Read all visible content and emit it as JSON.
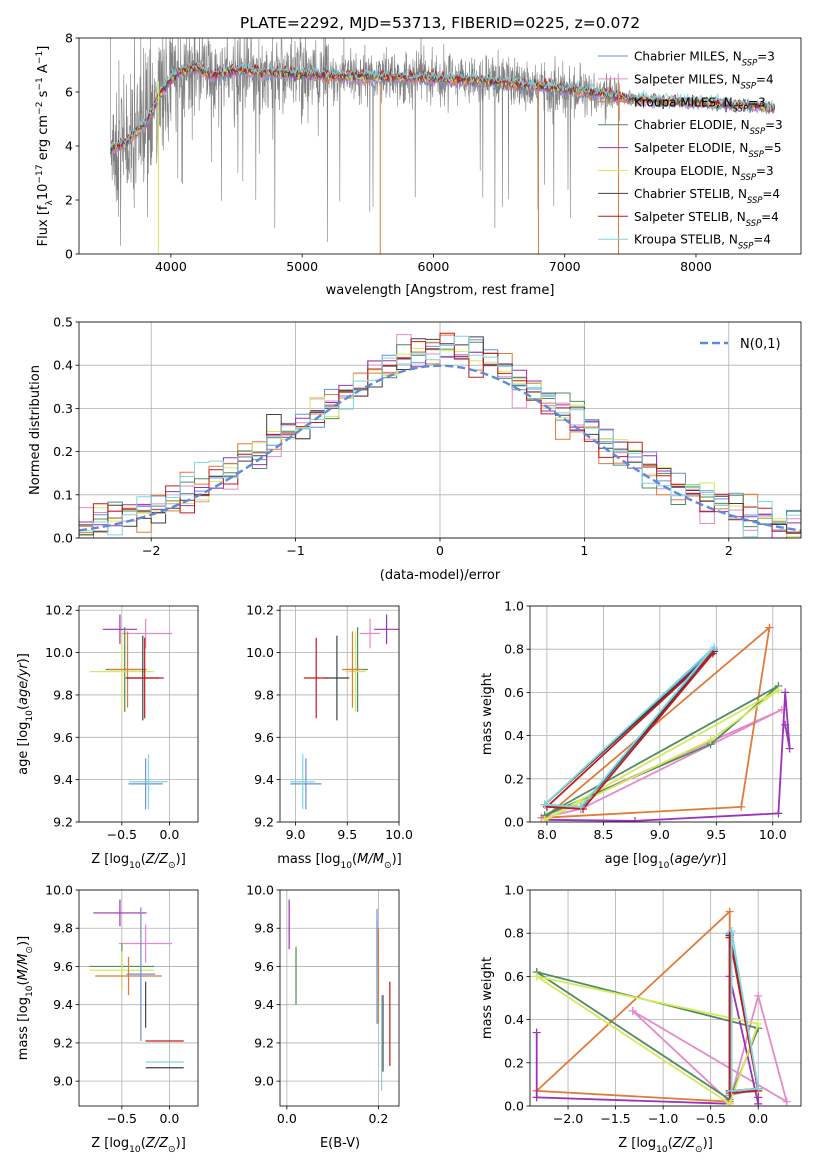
{
  "colors": {
    "chabrier_miles": "#6a8fd8",
    "salpeter_miles": "#e58ac9",
    "kroupa_miles": "#e07b39",
    "chabrier_elodie": "#4f8c62",
    "salpeter_elodie": "#9b32b8",
    "kroupa_elodie": "#d6ea5a",
    "chabrier_stelib": "#404040",
    "salpeter_stelib": "#c41a1a",
    "kroupa_stelib": "#7fd6e0",
    "spectrum": "#808080",
    "normal": "#5b8bd9"
  },
  "chart_data": [
    {
      "id": "spectrum",
      "type": "line",
      "title": "PLATE=2292, MJD=53713, FIBERID=0225, z=0.072",
      "xlabel": "wavelength [Angstrom, rest frame]",
      "ylabel": "Flux [f_λ10^-17 erg cm^-2 s^-1 A^-1]",
      "xlim": [
        3300,
        8800
      ],
      "ylim": [
        0,
        8
      ],
      "xticks": [
        4000,
        5000,
        6000,
        7000,
        8000
      ],
      "yticks": [
        0,
        2,
        4,
        6,
        8
      ],
      "legend_position": "right",
      "legend": [
        {
          "label": "Chabrier MILES, N_SSP=3",
          "color": "#6a8fd8"
        },
        {
          "label": "Salpeter MILES, N_SSP=4",
          "color": "#e58ac9"
        },
        {
          "label": "Kroupa MILES, N_SSP=3",
          "color": "#e07b39"
        },
        {
          "label": "Chabrier ELODIE, N_SSP=3",
          "color": "#4f8c62"
        },
        {
          "label": "Salpeter ELODIE, N_SSP=5",
          "color": "#9b32b8"
        },
        {
          "label": "Kroupa ELODIE, N_SSP=3",
          "color": "#d6ea5a"
        },
        {
          "label": "Chabrier STELIB, N_SSP=4",
          "color": "#404040"
        },
        {
          "label": "Salpeter STELIB, N_SSP=4",
          "color": "#c41a1a"
        },
        {
          "label": "Kroupa STELIB, N_SSP=4",
          "color": "#7fd6e0"
        }
      ],
      "observed_range": [
        3540,
        7420
      ],
      "model_envelope": {
        "x": [
          3540,
          3650,
          3800,
          3950,
          4050,
          4200,
          4300,
          4500,
          4800,
          5200,
          5600,
          6000,
          6400,
          6800,
          7200,
          7500,
          7800,
          8100,
          8400,
          8600
        ],
        "y": [
          3.9,
          4.1,
          4.8,
          6.2,
          6.7,
          6.9,
          6.6,
          6.8,
          6.7,
          6.6,
          6.55,
          6.5,
          6.4,
          6.2,
          6.0,
          5.75,
          5.65,
          5.6,
          5.5,
          5.4
        ]
      }
    },
    {
      "id": "residuals",
      "type": "histogram",
      "xlabel": "(data-model)/error",
      "ylabel": "Normed distribution",
      "xlim": [
        -2.5,
        2.5
      ],
      "ylim": [
        0,
        0.5
      ],
      "xticks": [
        -2,
        -1,
        0,
        1,
        2
      ],
      "yticks": [
        0.0,
        0.1,
        0.2,
        0.3,
        0.4,
        0.5
      ],
      "legend_position": "top-right",
      "legend_label": "N(0,1)",
      "bin_width": 0.1,
      "reference_curve": "normal(0,1)"
    },
    {
      "id": "age_vs_z",
      "type": "errorbar",
      "xlabel": "Z [log10(Z/Z⊙)]",
      "ylabel": "age [log10(age/yr)]",
      "xlim": [
        -0.95,
        0.3
      ],
      "ylim": [
        9.2,
        10.22
      ],
      "xticks": [
        -0.5,
        0.0
      ],
      "yticks": [
        9.2,
        9.4,
        9.6,
        9.8,
        10.0,
        10.2
      ],
      "points": [
        {
          "series": "salpeter_elodie",
          "x": -0.52,
          "y": 10.11,
          "xerr": 0.18,
          "yerr": 0.07
        },
        {
          "series": "salpeter_miles",
          "x": -0.25,
          "y": 10.09,
          "xerr": 0.28,
          "yerr": 0.07
        },
        {
          "series": "chabrier_elodie",
          "x": -0.47,
          "y": 9.92,
          "xerr": 0.2,
          "yerr": 0.2
        },
        {
          "series": "kroupa_elodie",
          "x": -0.5,
          "y": 9.91,
          "xerr": 0.34,
          "yerr": 0.19
        },
        {
          "series": "kroupa_miles",
          "x": -0.44,
          "y": 9.92,
          "xerr": 0.2,
          "yerr": 0.18
        },
        {
          "series": "chabrier_stelib",
          "x": -0.28,
          "y": 9.88,
          "xerr": 0.17,
          "yerr": 0.2
        },
        {
          "series": "salpeter_stelib",
          "x": -0.26,
          "y": 9.88,
          "xerr": 0.2,
          "yerr": 0.19
        },
        {
          "series": "chabrier_miles",
          "x": -0.25,
          "y": 9.38,
          "xerr": 0.18,
          "yerr": 0.12
        },
        {
          "series": "kroupa_stelib",
          "x": -0.22,
          "y": 9.39,
          "xerr": 0.2,
          "yerr": 0.13
        }
      ]
    },
    {
      "id": "age_vs_mass",
      "type": "errorbar",
      "xlabel": "mass [log10(M/M⊙)]",
      "xlim": [
        8.85,
        10.0
      ],
      "ylim": [
        9.2,
        10.22
      ],
      "xticks": [
        9.0,
        9.5,
        10.0
      ],
      "yticks": [
        9.2,
        9.4,
        9.6,
        9.8,
        10.0,
        10.2
      ],
      "points": [
        {
          "series": "salpeter_elodie",
          "x": 9.88,
          "y": 10.11,
          "xerr": 0.12,
          "yerr": 0.07
        },
        {
          "series": "salpeter_miles",
          "x": 9.72,
          "y": 10.09,
          "xerr": 0.1,
          "yerr": 0.07
        },
        {
          "series": "chabrier_elodie",
          "x": 9.6,
          "y": 9.92,
          "xerr": 0.1,
          "yerr": 0.2
        },
        {
          "series": "kroupa_elodie",
          "x": 9.58,
          "y": 9.91,
          "xerr": 0.1,
          "yerr": 0.19
        },
        {
          "series": "kroupa_miles",
          "x": 9.55,
          "y": 9.92,
          "xerr": 0.1,
          "yerr": 0.18
        },
        {
          "series": "chabrier_stelib",
          "x": 9.4,
          "y": 9.88,
          "xerr": 0.12,
          "yerr": 0.2
        },
        {
          "series": "salpeter_stelib",
          "x": 9.2,
          "y": 9.88,
          "xerr": 0.12,
          "yerr": 0.19
        },
        {
          "series": "chabrier_miles",
          "x": 9.1,
          "y": 9.38,
          "xerr": 0.15,
          "yerr": 0.12
        },
        {
          "series": "kroupa_stelib",
          "x": 9.07,
          "y": 9.39,
          "xerr": 0.12,
          "yerr": 0.13
        }
      ]
    },
    {
      "id": "weight_vs_age",
      "type": "line",
      "xlabel": "age [log10(age/yr)]",
      "ylabel": "mass weight",
      "xlim": [
        7.85,
        10.25
      ],
      "ylim": [
        0,
        1.0
      ],
      "xticks": [
        8.0,
        8.5,
        9.0,
        9.5,
        10.0
      ],
      "yticks": [
        0.0,
        0.2,
        0.4,
        0.6,
        0.8,
        1.0
      ],
      "series": [
        {
          "name": "chabrier_miles",
          "x": [
            7.98,
            9.48,
            8.3,
            7.98
          ],
          "y": [
            0.08,
            0.8,
            0.06,
            0.08
          ]
        },
        {
          "name": "salpeter_miles",
          "x": [
            7.95,
            10.08,
            8.3,
            7.95
          ],
          "y": [
            0.02,
            0.52,
            0.06,
            0.02
          ]
        },
        {
          "name": "kroupa_miles",
          "x": [
            7.98,
            9.72,
            9.97,
            7.98
          ],
          "y": [
            0.02,
            0.07,
            0.9,
            0.02
          ]
        },
        {
          "name": "chabrier_elodie",
          "x": [
            7.98,
            10.05,
            9.45,
            7.98
          ],
          "y": [
            0.03,
            0.63,
            0.36,
            0.03
          ]
        },
        {
          "name": "salpeter_elodie",
          "x": [
            7.98,
            8.78,
            10.05,
            10.11,
            10.15,
            10.11
          ],
          "y": [
            0.01,
            0.005,
            0.04,
            0.6,
            0.34,
            0.45
          ]
        },
        {
          "name": "kroupa_elodie",
          "x": [
            7.98,
            10.05,
            9.45,
            7.98
          ],
          "y": [
            0.01,
            0.61,
            0.38,
            0.01
          ]
        },
        {
          "name": "chabrier_stelib",
          "x": [
            7.98,
            9.48,
            8.3,
            7.98
          ],
          "y": [
            0.08,
            0.79,
            0.07,
            0.08
          ]
        },
        {
          "name": "salpeter_stelib",
          "x": [
            8.0,
            9.47,
            8.32,
            8.0
          ],
          "y": [
            0.07,
            0.78,
            0.06,
            0.07
          ]
        },
        {
          "name": "kroupa_stelib",
          "x": [
            7.98,
            9.48,
            8.3,
            7.98
          ],
          "y": [
            0.08,
            0.81,
            0.07,
            0.08
          ]
        }
      ]
    },
    {
      "id": "mass_vs_z",
      "type": "errorbar",
      "xlabel": "Z [log10(Z/Z⊙)]",
      "ylabel": "mass [log10(M/M⊙)]",
      "xlim": [
        -0.95,
        0.3
      ],
      "ylim": [
        8.87,
        10.0
      ],
      "xticks": [
        -0.5,
        0.0
      ],
      "yticks": [
        9.0,
        9.2,
        9.4,
        9.6,
        9.8,
        10.0
      ],
      "points": [
        {
          "series": "salpeter_elodie",
          "x": -0.52,
          "y": 9.88,
          "xerr": 0.28,
          "yerr": 0.07
        },
        {
          "series": "salpeter_miles",
          "x": -0.25,
          "y": 9.72,
          "xerr": 0.28,
          "yerr": 0.1
        },
        {
          "series": "chabrier_elodie",
          "x": -0.5,
          "y": 9.6,
          "xerr": 0.34,
          "yerr": 0.12
        },
        {
          "series": "kroupa_elodie",
          "x": -0.5,
          "y": 9.58,
          "xerr": 0.34,
          "yerr": 0.1
        },
        {
          "series": "kroupa_miles",
          "x": -0.43,
          "y": 9.55,
          "xerr": 0.35,
          "yerr": 0.1
        },
        {
          "series": "chabrier_miles",
          "x": -0.3,
          "y": 9.56,
          "xerr": 0.15,
          "yerr": 0.35
        },
        {
          "series": "chabrier_stelib",
          "x": -0.25,
          "y": 9.4,
          "xerr": 0.0,
          "yerr": 0.12
        },
        {
          "series": "salpeter_stelib",
          "x": -0.05,
          "y": 9.21,
          "xerr": 0.2,
          "yerr": 0.0
        },
        {
          "series": "kroupa_stelib",
          "x": -0.05,
          "y": 9.1,
          "xerr": 0.2,
          "yerr": 0.0
        },
        {
          "series": "chabrier_stelib",
          "x": -0.05,
          "y": 9.07,
          "xerr": 0.2,
          "yerr": 0.0
        }
      ]
    },
    {
      "id": "mass_vs_ebv",
      "type": "errorbar",
      "xlabel": "E(B-V)",
      "xlim": [
        -0.015,
        0.245
      ],
      "ylim": [
        8.87,
        10.0
      ],
      "xticks": [
        0.0,
        0.2
      ],
      "yticks": [
        9.0,
        9.2,
        9.4,
        9.6,
        9.8,
        10.0
      ],
      "points": [
        {
          "series": "salpeter_elodie",
          "x": 0.005,
          "y": 9.82,
          "xerr": 0.0,
          "yerr": 0.13
        },
        {
          "series": "kroupa_elodie",
          "x": 0.02,
          "y": 9.58,
          "xerr": 0.0,
          "yerr": 0.13
        },
        {
          "series": "chabrier_elodie",
          "x": 0.02,
          "y": 9.55,
          "xerr": 0.0,
          "yerr": 0.15
        },
        {
          "series": "salpeter_miles",
          "x": 0.197,
          "y": 9.72,
          "xerr": 0.0,
          "yerr": 0.12
        },
        {
          "series": "chabrier_miles",
          "x": 0.197,
          "y": 9.6,
          "xerr": 0.0,
          "yerr": 0.3
        },
        {
          "series": "kroupa_miles",
          "x": 0.2,
          "y": 9.55,
          "xerr": 0.0,
          "yerr": 0.25
        },
        {
          "series": "chabrier_stelib",
          "x": 0.21,
          "y": 9.25,
          "xerr": 0.0,
          "yerr": 0.2
        },
        {
          "series": "kroupa_stelib",
          "x": 0.207,
          "y": 9.2,
          "xerr": 0.0,
          "yerr": 0.25
        },
        {
          "series": "salpeter_stelib",
          "x": 0.225,
          "y": 9.3,
          "xerr": 0.0,
          "yerr": 0.22
        }
      ]
    },
    {
      "id": "weight_vs_z",
      "type": "line",
      "xlabel": "Z [log10(Z/Z⊙)]",
      "ylabel": "mass weight",
      "xlim": [
        -2.4,
        0.45
      ],
      "ylim": [
        0,
        1.0
      ],
      "xticks": [
        -2.0,
        -1.5,
        -1.0,
        -0.5,
        0.0
      ],
      "yticks": [
        0.0,
        0.2,
        0.4,
        0.6,
        0.8,
        1.0
      ],
      "series": [
        {
          "name": "chabrier_miles",
          "x": [
            -0.3,
            -0.3,
            0.0,
            -0.3
          ],
          "y": [
            0.8,
            0.05,
            0.08,
            0.8
          ]
        },
        {
          "name": "salpeter_miles",
          "x": [
            -1.32,
            -0.3,
            0.0,
            0.3,
            -1.32
          ],
          "y": [
            0.44,
            0.02,
            0.51,
            0.02,
            0.44
          ]
        },
        {
          "name": "kroupa_miles",
          "x": [
            -2.33,
            -0.3,
            -0.3,
            -2.33
          ],
          "y": [
            0.07,
            0.9,
            0.02,
            0.07
          ]
        },
        {
          "name": "chabrier_elodie",
          "x": [
            -2.33,
            -0.3,
            0.0,
            -2.33
          ],
          "y": [
            0.62,
            0.03,
            0.36,
            0.62
          ]
        },
        {
          "name": "salpeter_elodie",
          "x": [
            -2.33,
            -2.33,
            -0.3,
            -0.3,
            0.0,
            0.0
          ],
          "y": [
            0.34,
            0.04,
            0.01,
            0.6,
            0.01,
            0.04
          ]
        },
        {
          "name": "kroupa_elodie",
          "x": [
            -2.33,
            -0.3,
            0.0,
            -2.33
          ],
          "y": [
            0.6,
            0.01,
            0.38,
            0.6
          ]
        },
        {
          "name": "chabrier_stelib",
          "x": [
            -0.3,
            -0.3,
            0.0,
            -0.3
          ],
          "y": [
            0.79,
            0.07,
            0.08,
            0.79
          ]
        },
        {
          "name": "salpeter_stelib",
          "x": [
            -0.3,
            -0.3,
            0.0,
            -0.3
          ],
          "y": [
            0.78,
            0.06,
            0.07,
            0.78
          ]
        },
        {
          "name": "kroupa_stelib",
          "x": [
            -0.28,
            -0.28,
            0.0,
            -0.28
          ],
          "y": [
            0.81,
            0.07,
            0.08,
            0.81
          ]
        }
      ]
    }
  ]
}
